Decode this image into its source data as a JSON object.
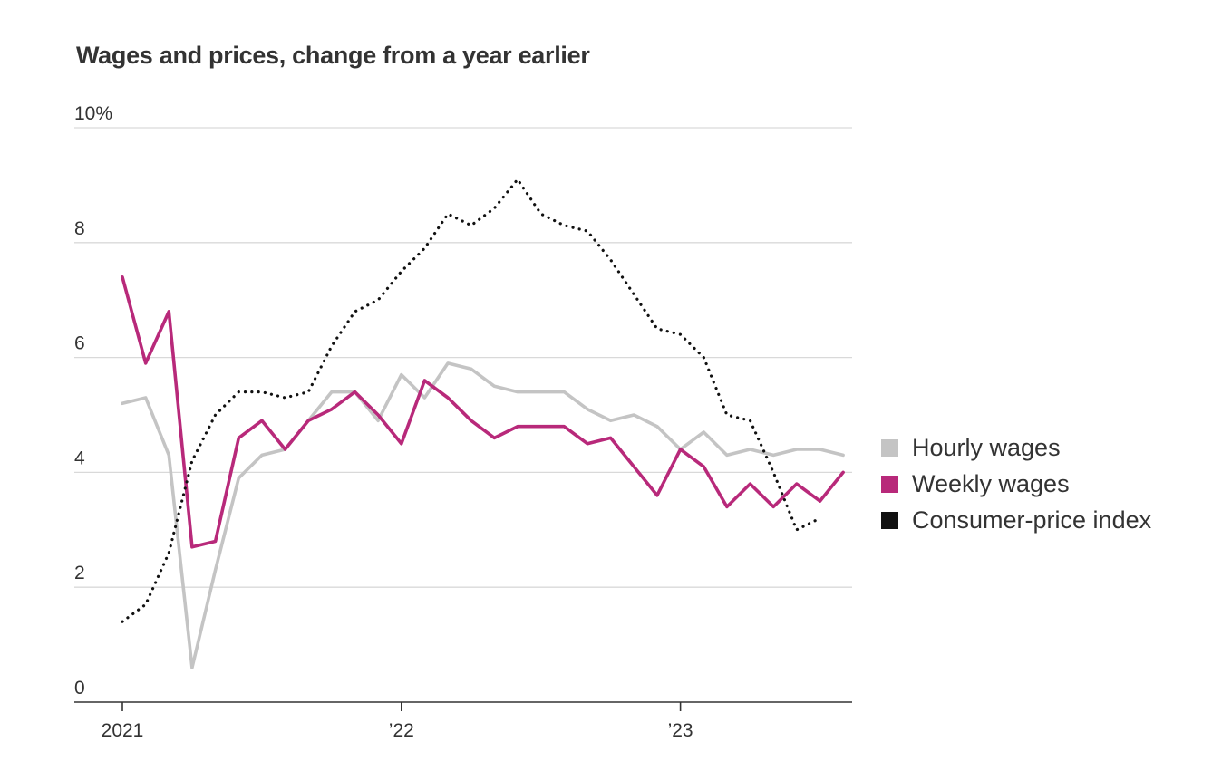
{
  "chart_data": {
    "type": "line",
    "title": "Wages and prices, change from a year earlier",
    "xlabel": "",
    "ylabel": "",
    "ylim": [
      0,
      10
    ],
    "yticks": [
      0,
      2,
      4,
      6,
      8,
      10
    ],
    "ytick_labels": [
      "0",
      "2",
      "4",
      "6",
      "8",
      "10%"
    ],
    "xticks": [
      {
        "month_index": 0,
        "label": "2021"
      },
      {
        "month_index": 12,
        "label": "’22"
      },
      {
        "month_index": 24,
        "label": "’23"
      }
    ],
    "x_months": [
      "2021-01",
      "2021-02",
      "2021-03",
      "2021-04",
      "2021-05",
      "2021-06",
      "2021-07",
      "2021-08",
      "2021-09",
      "2021-10",
      "2021-11",
      "2021-12",
      "2022-01",
      "2022-02",
      "2022-03",
      "2022-04",
      "2022-05",
      "2022-06",
      "2022-07",
      "2022-08",
      "2022-09",
      "2022-10",
      "2022-11",
      "2022-12",
      "2023-01",
      "2023-02",
      "2023-03",
      "2023-04",
      "2023-05",
      "2023-06",
      "2023-07",
      "2023-08"
    ],
    "grid": true,
    "legend_position": "right",
    "series": [
      {
        "name": "Hourly wages",
        "color": "#c4c4c4",
        "style": "solid",
        "values": [
          5.2,
          5.3,
          4.3,
          0.6,
          2.3,
          3.9,
          4.3,
          4.4,
          4.9,
          5.4,
          5.4,
          4.9,
          5.7,
          5.3,
          5.9,
          5.8,
          5.5,
          5.4,
          5.4,
          5.4,
          5.1,
          4.9,
          5.0,
          4.8,
          4.4,
          4.7,
          4.3,
          4.4,
          4.3,
          4.4,
          4.4,
          4.3
        ]
      },
      {
        "name": "Weekly wages",
        "color": "#b8297a",
        "style": "solid",
        "values": [
          7.4,
          5.9,
          6.8,
          2.7,
          2.8,
          4.6,
          4.9,
          4.4,
          4.9,
          5.1,
          5.4,
          5.0,
          4.5,
          5.6,
          5.3,
          4.9,
          4.6,
          4.8,
          4.8,
          4.8,
          4.5,
          4.6,
          4.1,
          3.6,
          4.4,
          4.1,
          3.4,
          3.8,
          3.4,
          3.8,
          3.5,
          4.0
        ]
      },
      {
        "name": "Consumer-price index",
        "color": "#111111",
        "style": "dotted",
        "values": [
          1.4,
          1.7,
          2.6,
          4.2,
          5.0,
          5.4,
          5.4,
          5.3,
          5.4,
          6.2,
          6.8,
          7.0,
          7.5,
          7.9,
          8.5,
          8.3,
          8.6,
          9.1,
          8.5,
          8.3,
          8.2,
          7.7,
          7.1,
          6.5,
          6.4,
          6.0,
          5.0,
          4.9,
          4.0,
          3.0,
          3.2
        ]
      }
    ]
  }
}
